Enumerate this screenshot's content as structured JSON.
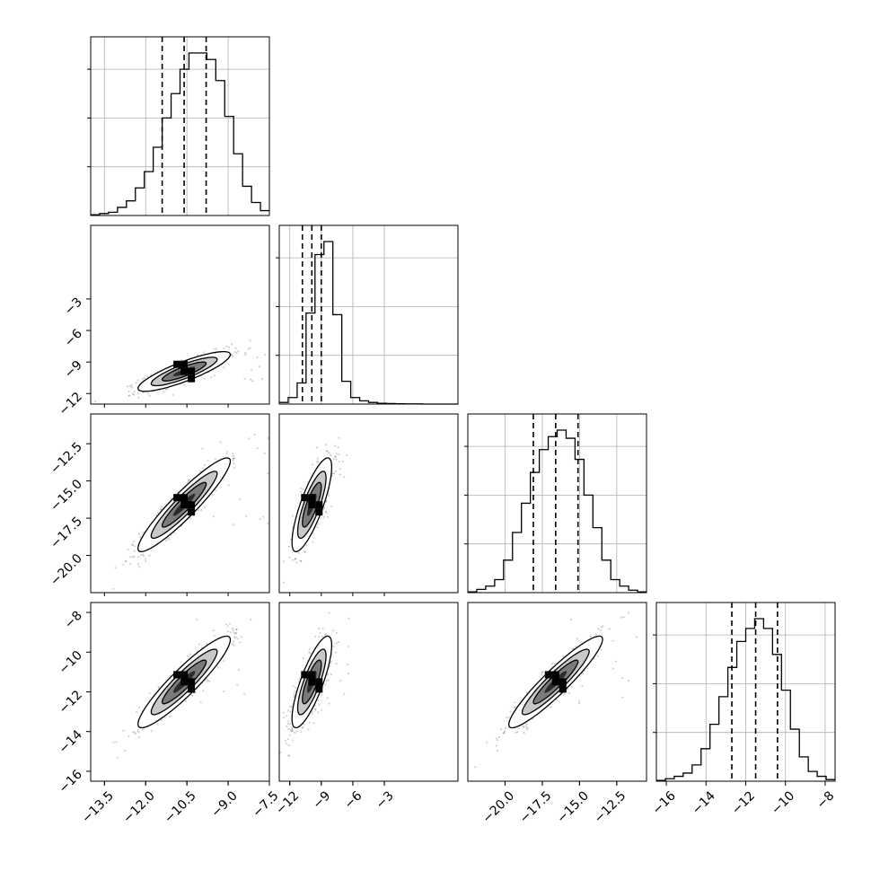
{
  "chart_data": {
    "type": "corner",
    "num_params": 4,
    "params": [
      {
        "range": [
          -14,
          -7.5
        ],
        "ticks": [
          -13.5,
          -12.0,
          -10.5,
          -9.0,
          -7.5
        ],
        "tick_labels": [
          "−13.5",
          "−12.0",
          "−10.5",
          "−9.0",
          "−7.5"
        ],
        "hist_ticks": [
          0.3,
          0.6,
          0.9
        ],
        "quantiles": [
          -11.4,
          -10.6,
          -9.8
        ],
        "hist": {
          "start": -14.0,
          "step": 0.325,
          "values": [
            0.005,
            0.012,
            0.02,
            0.05,
            0.09,
            0.17,
            0.27,
            0.42,
            0.6,
            0.75,
            0.9,
            1.0,
            1.0,
            0.96,
            0.83,
            0.61,
            0.38,
            0.18,
            0.08,
            0.03
          ]
        }
      },
      {
        "range": [
          -13,
          4
        ],
        "ticks": [
          -12,
          -9,
          -6,
          -3
        ],
        "tick_labels": [
          "−12",
          "−9",
          "−6",
          "−3"
        ],
        "hist_ticks": [
          0.3,
          0.6,
          0.9
        ],
        "quantiles": [
          -10.8,
          -9.9,
          -9.0
        ],
        "hist": {
          "start": -13.0,
          "step": 0.85,
          "values": [
            0.01,
            0.04,
            0.13,
            0.56,
            0.92,
            1.0,
            0.55,
            0.14,
            0.04,
            0.02,
            0.01,
            0.005,
            0.003,
            0.002,
            0.001,
            0.001,
            0.0,
            0.0,
            0.0,
            0.0
          ]
        }
      },
      {
        "range": [
          -22.5,
          -10.5
        ],
        "ticks": [
          -20.0,
          -17.5,
          -15.0,
          -12.5
        ],
        "tick_labels": [
          "−20.0",
          "−17.5",
          "−15.0",
          "−12.5"
        ],
        "hist_ticks": [
          0.3,
          0.6,
          0.9
        ],
        "quantiles": [
          -18.1,
          -16.6,
          -15.1
        ],
        "hist": {
          "start": -22.5,
          "step": 0.6,
          "values": [
            0.005,
            0.02,
            0.04,
            0.08,
            0.2,
            0.37,
            0.55,
            0.74,
            0.88,
            0.96,
            1.0,
            0.95,
            0.82,
            0.6,
            0.4,
            0.2,
            0.08,
            0.04,
            0.015,
            0.005
          ]
        }
      },
      {
        "range": [
          -16.5,
          -7.5
        ],
        "ticks": [
          -16,
          -14,
          -12,
          -10,
          -8
        ],
        "tick_labels": [
          "−16",
          "−14",
          "−12",
          "−10",
          "−8"
        ],
        "y_ticks": [
          -8,
          -10,
          -12,
          -14,
          -16
        ],
        "y_tick_labels": [
          "−8",
          "−10",
          "−12",
          "−14",
          "−16"
        ],
        "hist_ticks": [
          0.3,
          0.6,
          0.9
        ],
        "quantiles": [
          -12.7,
          -11.5,
          -10.4
        ],
        "hist": {
          "start": -16.5,
          "step": 0.45,
          "values": [
            0.005,
            0.015,
            0.03,
            0.05,
            0.1,
            0.2,
            0.35,
            0.52,
            0.7,
            0.86,
            0.94,
            1.0,
            0.94,
            0.78,
            0.56,
            0.32,
            0.15,
            0.06,
            0.03,
            0.01
          ]
        }
      }
    ],
    "pairs": [
      {
        "row": 1,
        "col": 0,
        "center": [
          -10.6,
          -9.9
        ],
        "sd": [
          0.8,
          0.9
        ],
        "corr": 0.85
      },
      {
        "row": 2,
        "col": 0,
        "center": [
          -10.6,
          -16.6
        ],
        "sd": [
          0.8,
          1.5
        ],
        "corr": 0.93
      },
      {
        "row": 2,
        "col": 1,
        "center": [
          -9.9,
          -16.6
        ],
        "sd": [
          0.9,
          1.5
        ],
        "corr": 0.8
      },
      {
        "row": 3,
        "col": 0,
        "center": [
          -10.6,
          -11.5
        ],
        "sd": [
          0.8,
          1.1
        ],
        "corr": 0.92
      },
      {
        "row": 3,
        "col": 1,
        "center": [
          -9.9,
          -11.5
        ],
        "sd": [
          0.9,
          1.1
        ],
        "corr": 0.8
      },
      {
        "row": 3,
        "col": 2,
        "center": [
          -16.6,
          -11.5
        ],
        "sd": [
          1.5,
          1.1
        ],
        "corr": 0.93
      }
    ],
    "grid": true,
    "colors": {
      "line": "#000000",
      "grid": "#b0b0b0",
      "points": "#000000",
      "fill_levels": [
        "#ffffff",
        "#c8c8c8",
        "#7a7a7a",
        "#2c2c2c"
      ]
    }
  }
}
